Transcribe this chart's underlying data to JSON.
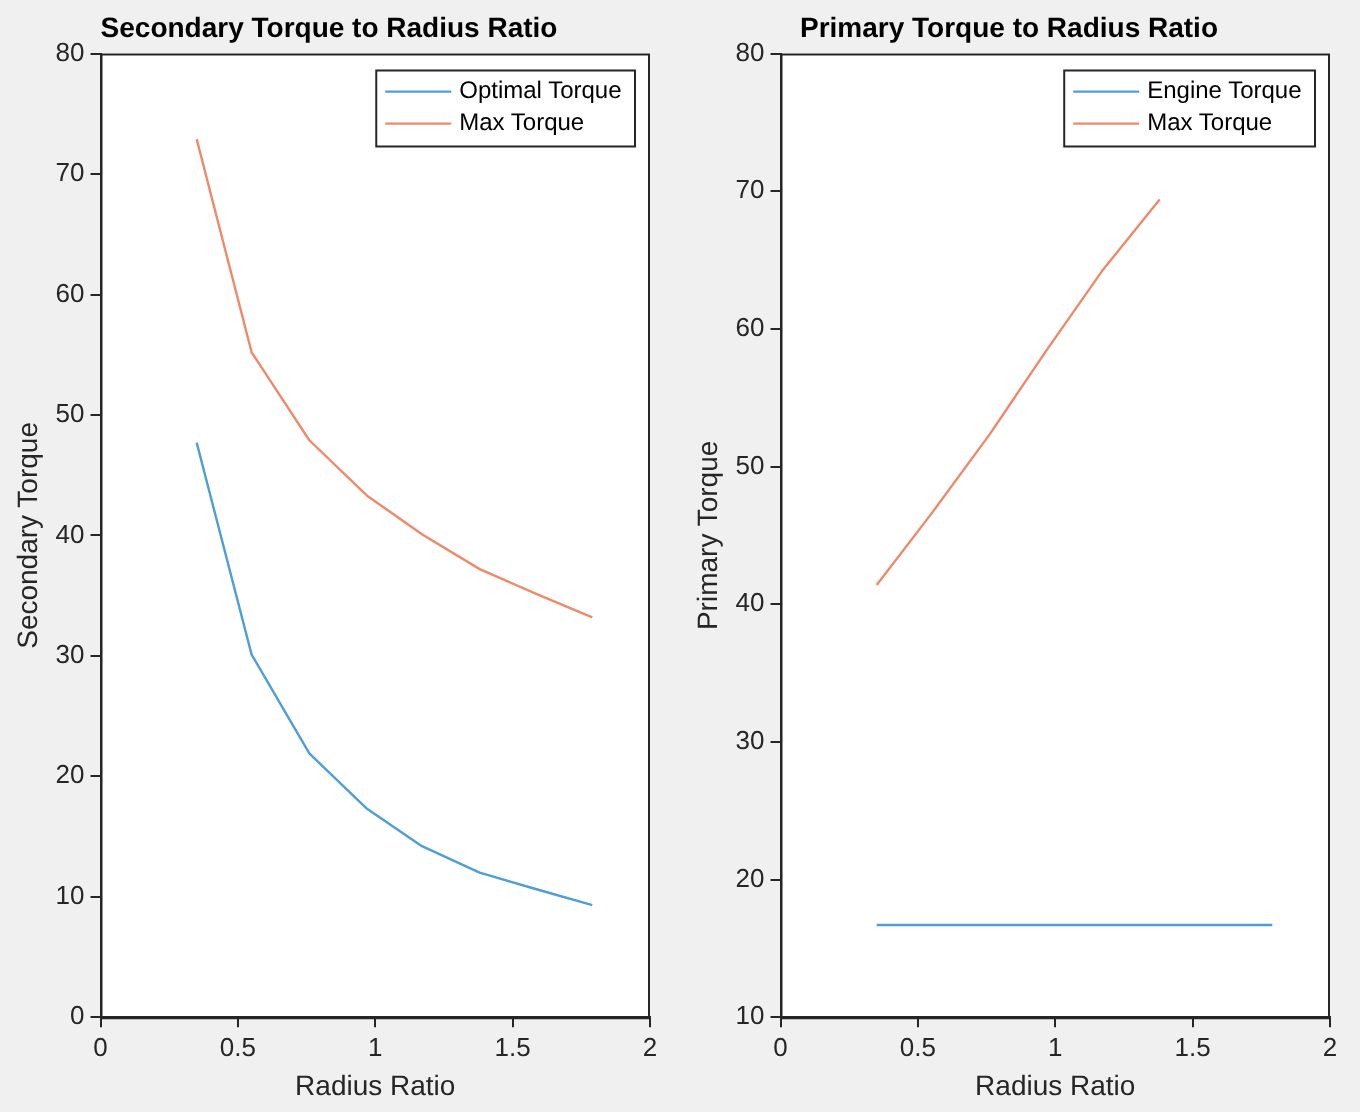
{
  "chart_data": [
    {
      "type": "line",
      "title": "Secondary Torque to Radius Ratio",
      "xlabel": "Radius Ratio",
      "ylabel": "Secondary Torque",
      "x": [
        0.35,
        0.55,
        0.76,
        0.97,
        1.17,
        1.38,
        1.59,
        1.79
      ],
      "xlim": [
        0,
        2
      ],
      "ylim": [
        0,
        80
      ],
      "xticks": [
        0,
        0.5,
        1,
        1.5,
        2
      ],
      "yticks": [
        0,
        10,
        20,
        30,
        40,
        50,
        60,
        70,
        80
      ],
      "legend": "top right",
      "marker": "none",
      "grid": false,
      "series": [
        {
          "name": "Optimal Torque",
          "color": "#4d9fd6",
          "values": [
            47.7,
            30.1,
            21.9,
            17.3,
            14.2,
            12.0,
            10.6,
            9.3
          ]
        },
        {
          "name": "Max Torque",
          "color": "#ee8a6a",
          "values": [
            72.9,
            55.2,
            47.9,
            43.3,
            40.1,
            37.2,
            35.1,
            33.2
          ]
        }
      ]
    },
    {
      "type": "line",
      "title": "Primary Torque to Radius Ratio",
      "xlabel": "Radius Ratio",
      "ylabel": "Primary Torque",
      "x": [
        0.35,
        0.55,
        0.76,
        0.97,
        1.17,
        1.38,
        1.59,
        1.79
      ],
      "xlim": [
        0,
        2
      ],
      "ylim": [
        10,
        80
      ],
      "xticks": [
        0,
        0.5,
        1,
        1.5,
        2
      ],
      "yticks": [
        10,
        20,
        30,
        40,
        50,
        60,
        70,
        80
      ],
      "legend": "top right",
      "marker": "none",
      "grid": false,
      "series": [
        {
          "name": "Engine Torque",
          "color": "#4d9fd6",
          "values": [
            16.7,
            16.7,
            16.7,
            16.7,
            16.7,
            16.7,
            16.7,
            16.7
          ]
        },
        {
          "name": "Max Torque",
          "color": "#ee8a6a",
          "values": [
            41.4,
            46.6,
            52.3,
            58.5,
            64.2,
            69.4,
            null,
            null
          ]
        }
      ]
    }
  ]
}
